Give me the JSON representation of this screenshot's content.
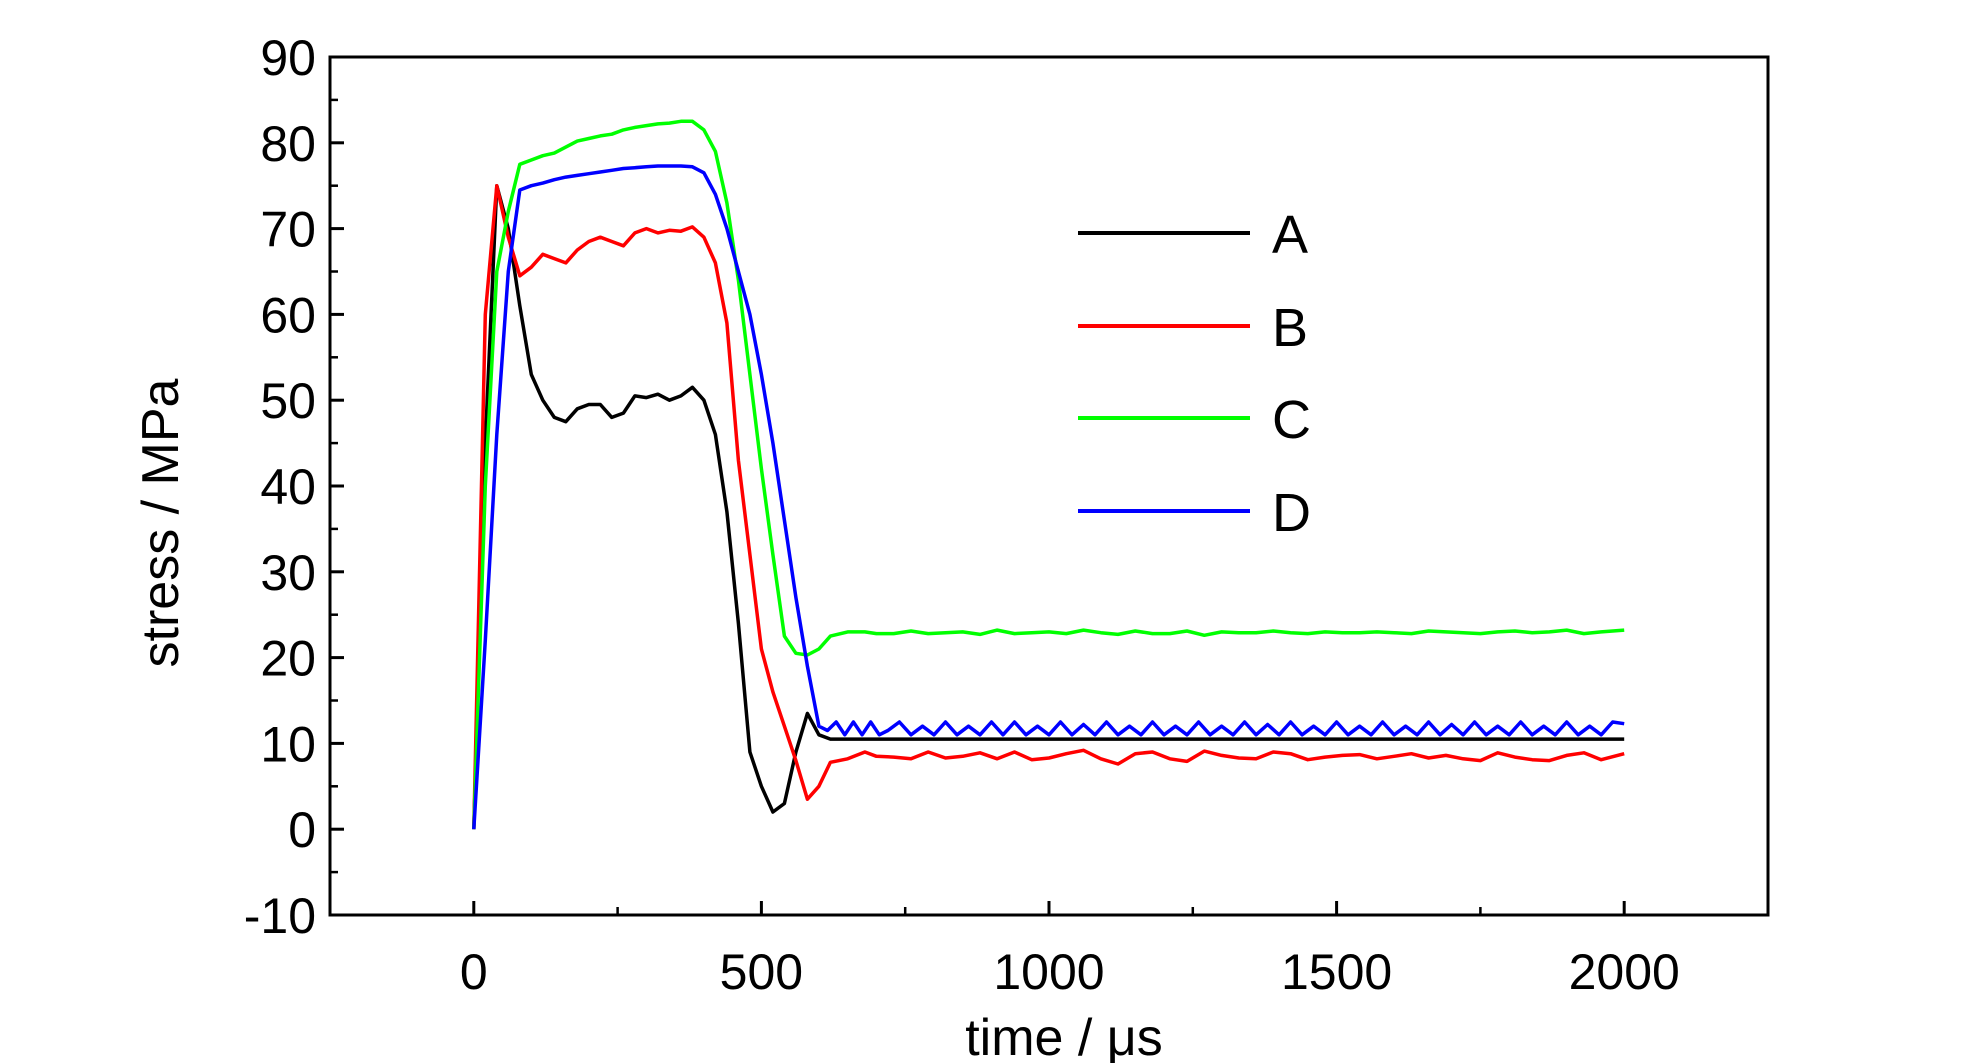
{
  "chart_data": {
    "type": "line",
    "xlabel": "time / μs",
    "ylabel": "stress / MPa",
    "xlim": [
      -250,
      2250
    ],
    "ylim": [
      -10,
      90
    ],
    "x_ticks": [
      0,
      500,
      1000,
      1500,
      2000
    ],
    "x_minor_ticks": [
      250,
      750,
      1250,
      1750
    ],
    "y_ticks": [
      -10,
      0,
      10,
      20,
      30,
      40,
      50,
      60,
      70,
      80,
      90
    ],
    "x_tick_labels": [
      "0",
      "500",
      "1000",
      "1500",
      "2000"
    ],
    "y_tick_labels": [
      "-10",
      "0",
      "10",
      "20",
      "30",
      "40",
      "50",
      "60",
      "70",
      "80",
      "90"
    ],
    "grid": false,
    "legend_position": "upper-right",
    "series": [
      {
        "name": "A",
        "color": "#000000",
        "x": [
          0,
          20,
          40,
          60,
          80,
          100,
          120,
          140,
          160,
          180,
          200,
          220,
          240,
          260,
          280,
          300,
          320,
          340,
          360,
          380,
          400,
          420,
          440,
          460,
          480,
          500,
          520,
          540,
          560,
          580,
          600,
          620,
          650,
          700,
          800,
          1000,
          1200,
          1400,
          1600,
          1800,
          2000
        ],
        "y": [
          0,
          45,
          75,
          70,
          61,
          53,
          50,
          48,
          47.5,
          49,
          49.5,
          49.5,
          48,
          48.5,
          50.5,
          50.3,
          50.7,
          50,
          50.5,
          51.5,
          50,
          46,
          37,
          24,
          9,
          5,
          2,
          3,
          9,
          13.5,
          11,
          10.5,
          10.5,
          10.5,
          10.5,
          10.5,
          10.5,
          10.5,
          10.5,
          10.5,
          10.5
        ]
      },
      {
        "name": "B",
        "color": "#ff0000",
        "x": [
          0,
          20,
          40,
          60,
          80,
          100,
          120,
          140,
          160,
          180,
          200,
          220,
          240,
          260,
          280,
          300,
          320,
          340,
          360,
          380,
          400,
          420,
          440,
          460,
          480,
          500,
          520,
          540,
          560,
          580,
          600,
          620,
          650,
          680,
          700,
          730,
          760,
          790,
          820,
          850,
          880,
          910,
          940,
          970,
          1000,
          1030,
          1060,
          1090,
          1120,
          1150,
          1180,
          1210,
          1240,
          1270,
          1300,
          1330,
          1360,
          1390,
          1420,
          1450,
          1480,
          1510,
          1540,
          1570,
          1600,
          1630,
          1660,
          1690,
          1720,
          1750,
          1780,
          1810,
          1840,
          1870,
          1900,
          1930,
          1960,
          2000
        ],
        "y": [
          0,
          60,
          75,
          69,
          64.5,
          65.5,
          67,
          66.5,
          66,
          67.5,
          68.5,
          69,
          68.5,
          68,
          69.5,
          70,
          69.5,
          69.8,
          69.7,
          70.2,
          69,
          66,
          59,
          43,
          32,
          21,
          16,
          12,
          8,
          3.5,
          5,
          7.8,
          8.2,
          9,
          8.5,
          8.4,
          8.2,
          9.0,
          8.3,
          8.5,
          8.9,
          8.2,
          9.0,
          8.1,
          8.3,
          8.8,
          9.2,
          8.2,
          7.6,
          8.8,
          9.0,
          8.2,
          7.9,
          9.1,
          8.6,
          8.3,
          8.2,
          9.0,
          8.8,
          8.1,
          8.4,
          8.6,
          8.7,
          8.2,
          8.5,
          8.8,
          8.3,
          8.6,
          8.2,
          8.0,
          8.9,
          8.4,
          8.1,
          8.0,
          8.6,
          8.9,
          8.1,
          8.8
        ]
      },
      {
        "name": "C",
        "color": "#00ff00",
        "x": [
          0,
          20,
          40,
          60,
          80,
          100,
          120,
          140,
          160,
          180,
          200,
          220,
          240,
          260,
          280,
          300,
          320,
          340,
          360,
          380,
          400,
          420,
          440,
          460,
          480,
          500,
          520,
          540,
          560,
          580,
          600,
          620,
          650,
          680,
          700,
          730,
          760,
          790,
          820,
          850,
          880,
          910,
          940,
          970,
          1000,
          1030,
          1060,
          1090,
          1120,
          1150,
          1180,
          1210,
          1240,
          1270,
          1300,
          1330,
          1360,
          1390,
          1420,
          1450,
          1480,
          1510,
          1540,
          1570,
          1600,
          1630,
          1660,
          1690,
          1720,
          1750,
          1780,
          1810,
          1840,
          1870,
          1900,
          1930,
          1960,
          2000
        ],
        "y": [
          0,
          40,
          65,
          72,
          77.5,
          78,
          78.5,
          78.8,
          79.5,
          80.2,
          80.5,
          80.8,
          81,
          81.5,
          81.8,
          82,
          82.2,
          82.3,
          82.5,
          82.5,
          81.5,
          79,
          73,
          64,
          53,
          42,
          32,
          22.5,
          20.5,
          20.3,
          21,
          22.5,
          23,
          23,
          22.8,
          22.8,
          23.1,
          22.8,
          22.9,
          23.0,
          22.7,
          23.2,
          22.8,
          22.9,
          23.0,
          22.8,
          23.2,
          22.9,
          22.7,
          23.1,
          22.8,
          22.8,
          23.1,
          22.6,
          23.0,
          22.9,
          22.9,
          23.1,
          22.9,
          22.8,
          23.0,
          22.9,
          22.9,
          23.0,
          22.9,
          22.8,
          23.1,
          23.0,
          22.9,
          22.8,
          23.0,
          23.1,
          22.9,
          23.0,
          23.2,
          22.8,
          23.0,
          23.2
        ]
      },
      {
        "name": "D",
        "color": "#0000ff",
        "x": [
          0,
          20,
          40,
          60,
          80,
          100,
          120,
          140,
          160,
          180,
          200,
          220,
          240,
          260,
          280,
          300,
          320,
          340,
          360,
          380,
          400,
          420,
          440,
          460,
          480,
          500,
          520,
          540,
          560,
          580,
          600,
          615,
          630,
          645,
          660,
          675,
          690,
          705,
          720,
          740,
          760,
          780,
          800,
          820,
          840,
          860,
          880,
          900,
          920,
          940,
          960,
          980,
          1000,
          1020,
          1040,
          1060,
          1080,
          1100,
          1120,
          1140,
          1160,
          1180,
          1200,
          1220,
          1240,
          1260,
          1280,
          1300,
          1320,
          1340,
          1360,
          1380,
          1400,
          1420,
          1440,
          1460,
          1480,
          1500,
          1520,
          1540,
          1560,
          1580,
          1600,
          1620,
          1640,
          1660,
          1680,
          1700,
          1720,
          1740,
          1760,
          1780,
          1800,
          1820,
          1840,
          1860,
          1880,
          1900,
          1920,
          1940,
          1960,
          1980,
          2000
        ],
        "y": [
          0,
          22,
          46,
          65,
          74.5,
          75,
          75.3,
          75.7,
          76,
          76.2,
          76.4,
          76.6,
          76.8,
          77,
          77.1,
          77.2,
          77.3,
          77.3,
          77.3,
          77.2,
          76.5,
          74,
          70,
          65,
          60,
          53,
          45,
          36,
          27,
          19,
          12,
          11.5,
          12.5,
          11,
          12.5,
          11,
          12.5,
          11,
          11.5,
          12.5,
          11,
          12,
          11,
          12.5,
          11,
          12,
          11,
          12.5,
          11,
          12.5,
          11,
          12,
          11,
          12.5,
          11,
          12.2,
          11,
          12.5,
          11,
          12,
          11,
          12.5,
          11,
          12,
          11,
          12.5,
          11,
          12,
          11,
          12.5,
          11,
          12.2,
          11,
          12.5,
          11,
          12,
          11,
          12.5,
          11,
          12,
          11,
          12.5,
          11,
          12,
          11,
          12.5,
          11,
          12.2,
          11,
          12.5,
          11,
          12,
          11,
          12.5,
          11,
          12,
          11,
          12.5,
          11,
          12,
          11,
          12.5,
          12.3
        ]
      }
    ]
  }
}
